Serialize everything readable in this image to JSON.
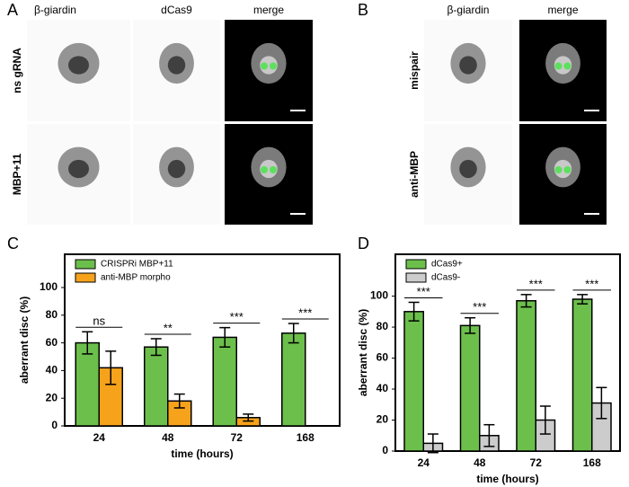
{
  "panels": {
    "A": {
      "label": "A",
      "columns": [
        "β-giardin",
        "dCas9",
        "merge"
      ],
      "rows": [
        "ns gRNA",
        "MBP+11"
      ]
    },
    "B": {
      "label": "B",
      "columns": [
        "β-giardin",
        "merge"
      ],
      "rows": [
        "mispair",
        "anti-MBP"
      ]
    }
  },
  "chart_data": [
    {
      "type": "bar",
      "panel_label": "C",
      "categories": [
        "24",
        "48",
        "72",
        "168"
      ],
      "series": [
        {
          "name": "CRISPRi MBP+11",
          "color": "#6cbf4b",
          "values": [
            60,
            57,
            64,
            67
          ],
          "errors": [
            8,
            6,
            7,
            7
          ]
        },
        {
          "name": "anti-MBP morpho",
          "color": "#f7a21b",
          "values": [
            42,
            18,
            6,
            null
          ],
          "errors": [
            12,
            5,
            2.5,
            null
          ]
        }
      ],
      "annotations": [
        "ns",
        "**",
        "***",
        "***"
      ],
      "xlabel": "time (hours)",
      "ylabel": "aberrant disc (%)",
      "ylim": [
        0,
        124
      ],
      "yticks": [
        0,
        20,
        40,
        60,
        80,
        100
      ],
      "legend": "upper-left"
    },
    {
      "type": "bar",
      "panel_label": "D",
      "categories": [
        "24",
        "48",
        "72",
        "168"
      ],
      "series": [
        {
          "name": "dCas9+",
          "color": "#6cbf4b",
          "values": [
            90,
            81,
            97,
            98
          ],
          "errors": [
            6,
            5,
            4,
            3
          ]
        },
        {
          "name": "dCas9-",
          "color": "#cccccc",
          "values": [
            5,
            10,
            20,
            31
          ],
          "errors": [
            6,
            7,
            9,
            10
          ]
        }
      ],
      "annotations": [
        "***",
        "***",
        "***",
        "***"
      ],
      "xlabel": "time (hours)",
      "ylabel": "aberrant disc (%)",
      "ylim": [
        0,
        127
      ],
      "yticks": [
        0,
        20,
        40,
        60,
        80,
        100
      ],
      "legend": "upper-left"
    }
  ]
}
